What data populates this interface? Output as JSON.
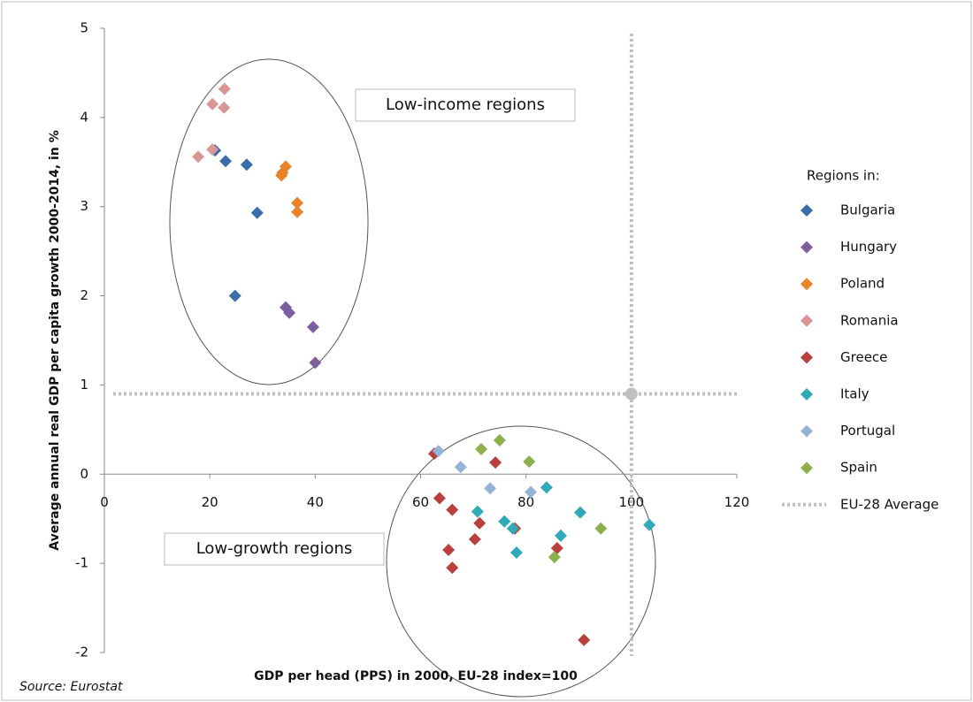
{
  "chart_data": {
    "type": "scatter",
    "x_label": "GDP per head (PPS) in 2000, EU-28 index=100",
    "y_label": "Average annual real GDP per capita growth 2000-2014, in %",
    "xlim": [
      0,
      120
    ],
    "xticks": [
      0,
      20,
      40,
      60,
      80,
      100,
      120
    ],
    "ylim": [
      -2,
      5
    ],
    "yticks": [
      -2,
      -1,
      0,
      1,
      2,
      3,
      4,
      5
    ],
    "legend_title": "Regions in:",
    "legend_position": "right",
    "source": "Source: Eurostat",
    "annotations": [
      "Low-income regions",
      "Low-growth regions"
    ],
    "reference": {
      "name": "EU-28 Average",
      "x": 100,
      "y": 0.9,
      "color": "#bfbfbf"
    },
    "series": [
      {
        "name": "Bulgaria",
        "color": "#3a6eaa",
        "x": [
          21.0,
          23.0,
          27.0,
          29.0,
          24.8
        ],
        "y": [
          3.63,
          3.51,
          3.47,
          2.93,
          2.0
        ]
      },
      {
        "name": "Hungary",
        "color": "#7d5fa0",
        "x": [
          34.4,
          35.1,
          39.6,
          40.0
        ],
        "y": [
          1.87,
          1.81,
          1.65,
          1.25
        ]
      },
      {
        "name": "Poland",
        "color": "#e8832a",
        "x": [
          34.4,
          33.8,
          33.6,
          36.6,
          36.6
        ],
        "y": [
          3.45,
          3.38,
          3.35,
          3.04,
          2.94
        ]
      },
      {
        "name": "Romania",
        "color": "#d99694",
        "x": [
          17.8,
          20.5,
          20.5,
          22.7,
          22.8
        ],
        "y": [
          3.56,
          3.64,
          4.15,
          4.11,
          4.32
        ]
      },
      {
        "name": "Greece",
        "color": "#b9403f",
        "x": [
          62.6,
          63.6,
          66.0,
          74.2,
          71.2,
          70.3,
          65.3,
          66.0,
          77.9,
          85.9,
          91.0
        ],
        "y": [
          0.23,
          -0.27,
          -0.4,
          0.13,
          -0.55,
          -0.73,
          -0.85,
          -1.05,
          -0.61,
          -0.83,
          -1.86
        ]
      },
      {
        "name": "Italy",
        "color": "#31a9b8",
        "x": [
          70.8,
          75.9,
          77.5,
          78.2,
          83.9,
          86.6,
          90.3,
          103.4
        ],
        "y": [
          -0.42,
          -0.53,
          -0.61,
          -0.88,
          -0.15,
          -0.69,
          -0.43,
          -0.57
        ]
      },
      {
        "name": "Portugal",
        "color": "#95b3d7",
        "x": [
          63.4,
          67.6,
          73.2,
          80.9
        ],
        "y": [
          0.26,
          0.08,
          -0.16,
          -0.2
        ]
      },
      {
        "name": "Spain",
        "color": "#8db04e",
        "x": [
          71.5,
          75.0,
          80.6,
          85.4,
          94.2
        ],
        "y": [
          0.28,
          0.38,
          0.14,
          -0.93,
          -0.61
        ]
      }
    ]
  }
}
